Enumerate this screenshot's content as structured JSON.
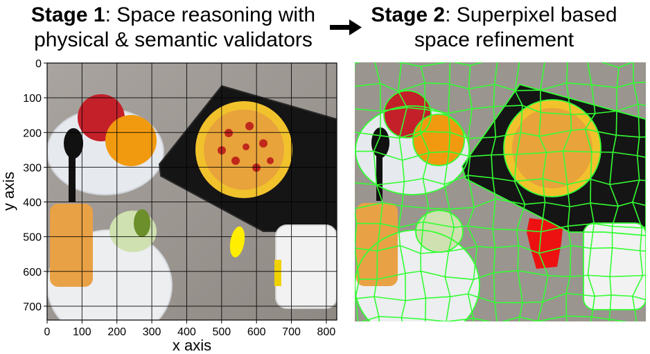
{
  "stage1": {
    "label": "Stage 1",
    "title_line1_rest": ": Space reasoning with",
    "title_line2": "physical & semantic validators"
  },
  "stage2": {
    "label": "Stage 2",
    "title_line1_rest": ": Superpixel based",
    "title_line2": "space refinement"
  },
  "arrow_icon": "right-arrow-icon",
  "plot": {
    "xlabel": "x axis",
    "ylabel": "y axis",
    "xticks": [
      "0",
      "100",
      "200",
      "300",
      "400",
      "500",
      "600",
      "700",
      "800"
    ],
    "yticks": [
      "0",
      "100",
      "200",
      "300",
      "400",
      "500",
      "600",
      "700"
    ],
    "xlim": [
      0,
      830
    ],
    "ylim": [
      740,
      0
    ],
    "grid": true,
    "marker": {
      "shape": "ellipse",
      "color": "#ffee00",
      "cx": 545,
      "cy": 515,
      "rx": 20,
      "ry": 45
    }
  },
  "colors": {
    "superpixel_boundary": "#33ff33",
    "selected_region": "#ee1111",
    "marker": "#ffee00"
  }
}
